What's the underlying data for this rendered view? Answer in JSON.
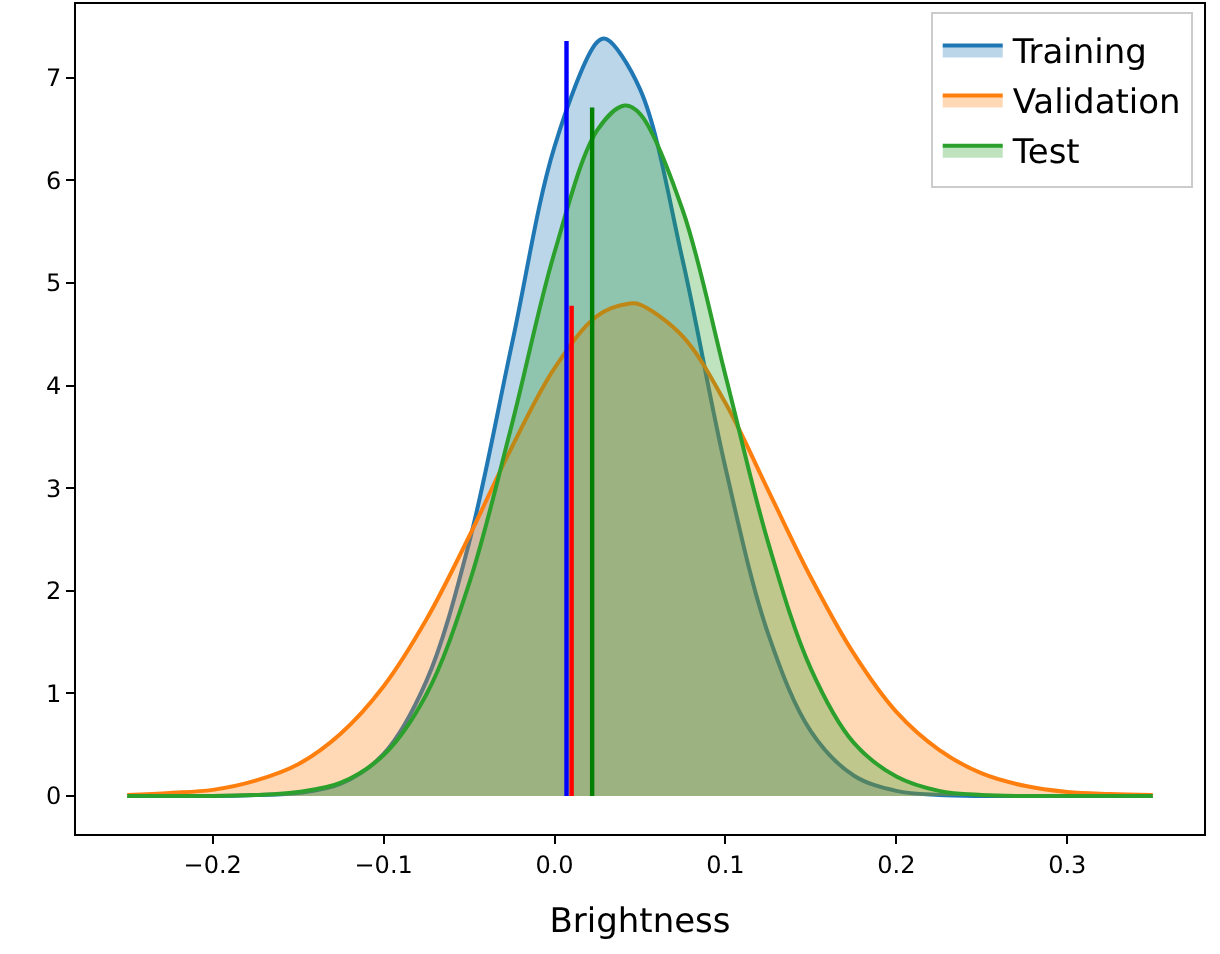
{
  "chart_data": {
    "type": "area",
    "xlabel": "Brightness",
    "series": [
      {
        "name": "Training",
        "color": "#1f77b4",
        "x": [
          -0.25,
          -0.225,
          -0.2,
          -0.175,
          -0.15,
          -0.125,
          -0.1,
          -0.075,
          -0.05,
          -0.025,
          0,
          0.025,
          0.03,
          0.05,
          0.075,
          0.1,
          0.125,
          0.15,
          0.175,
          0.2,
          0.225,
          0.25,
          0.275,
          0.3,
          0.325,
          0.35
        ],
        "values": [
          0,
          0,
          0,
          0.01,
          0.03,
          0.12,
          0.41,
          1.12,
          2.47,
          4.4,
          6.33,
          7.35,
          7.38,
          6.89,
          5.22,
          3.2,
          1.58,
          0.63,
          0.2,
          0.05,
          0.01,
          0,
          0,
          0,
          0,
          0
        ]
      },
      {
        "name": "Validation",
        "color": "#ff7f0e",
        "x": [
          -0.25,
          -0.225,
          -0.2,
          -0.175,
          -0.15,
          -0.125,
          -0.1,
          -0.075,
          -0.05,
          -0.025,
          0,
          0.025,
          0.044,
          0.05,
          0.075,
          0.1,
          0.125,
          0.15,
          0.175,
          0.2,
          0.225,
          0.25,
          0.275,
          0.3,
          0.325,
          0.35
        ],
        "values": [
          0.01,
          0.03,
          0.06,
          0.15,
          0.31,
          0.61,
          1.07,
          1.72,
          2.53,
          3.4,
          4.17,
          4.68,
          4.8,
          4.79,
          4.48,
          3.83,
          2.98,
          2.13,
          1.39,
          0.82,
          0.45,
          0.22,
          0.1,
          0.04,
          0.02,
          0.01
        ]
      },
      {
        "name": "Test",
        "color": "#2ca02c",
        "x": [
          -0.25,
          -0.225,
          -0.2,
          -0.175,
          -0.15,
          -0.125,
          -0.1,
          -0.075,
          -0.05,
          -0.025,
          0,
          0.025,
          0.041,
          0.05,
          0.075,
          0.1,
          0.125,
          0.15,
          0.175,
          0.2,
          0.225,
          0.25,
          0.275,
          0.3,
          0.325,
          0.35
        ],
        "values": [
          0,
          0,
          0,
          0.01,
          0.04,
          0.13,
          0.4,
          0.99,
          2.07,
          3.62,
          5.3,
          6.49,
          6.73,
          6.65,
          5.71,
          4.1,
          2.47,
          1.24,
          0.52,
          0.19,
          0.05,
          0.01,
          0,
          0,
          0,
          0
        ]
      },
      {
        "type": "line",
        "color": "#0000ff",
        "x": [
          0.007,
          0.007
        ],
        "values": [
          0,
          7.36
        ]
      },
      {
        "type": "line",
        "color": "#ff0000",
        "x": [
          0.01,
          0.01
        ],
        "values": [
          0,
          4.78
        ]
      },
      {
        "type": "line",
        "color": "#008000",
        "x": [
          0.022,
          0.022
        ],
        "values": [
          0,
          6.71
        ]
      }
    ],
    "xlim": [
      -0.28,
      0.38
    ],
    "xticks": [
      {
        "value": -0.2,
        "label": "−0.2"
      },
      {
        "value": -0.1,
        "label": "−0.1"
      },
      {
        "value": 0,
        "label": "0.0"
      },
      0.1,
      0.2,
      0.3
    ],
    "ylim": [
      -0.37,
      7.72
    ],
    "yticks": [
      0,
      1,
      2,
      3,
      4,
      5,
      6,
      7
    ],
    "legend": "top right",
    "marker": "none",
    "line_style": "solid"
  }
}
